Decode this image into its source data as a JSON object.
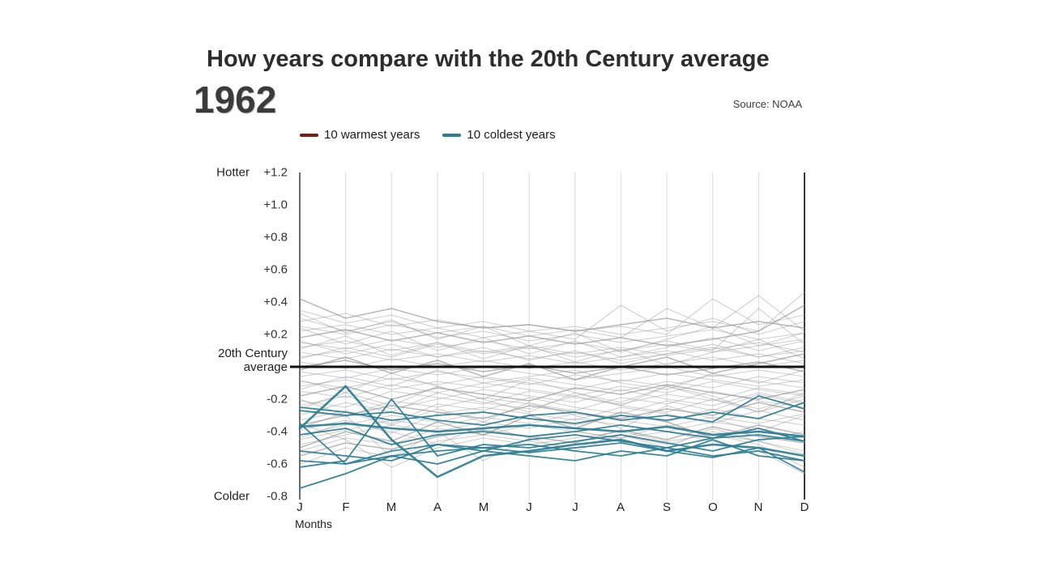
{
  "header": {
    "title": "How years compare with the 20th Century average",
    "year": "1962",
    "source": "Source: NOAA"
  },
  "legend": {
    "warmest": {
      "label": "10 warmest years",
      "color": "#7b1d12"
    },
    "coldest": {
      "label": "10 coldest years",
      "color": "#2b7d92"
    }
  },
  "axis": {
    "hotter": "Hotter",
    "colder": "Colder",
    "zero_line1": "20th Century",
    "zero_line2": "average",
    "y_ticks": [
      "+1.2",
      "+1.0",
      "+0.8",
      "+0.6",
      "+0.4",
      "+0.2",
      "-0.2",
      "-0.4",
      "-0.6",
      "-0.8"
    ],
    "months": [
      "J",
      "F",
      "M",
      "A",
      "M",
      "J",
      "J",
      "A",
      "S",
      "O",
      "N",
      "D"
    ],
    "months_caption": "Months"
  },
  "chart_data": {
    "type": "line",
    "title": "How years compare with the 20th Century average",
    "current_year": 1962,
    "x_categories": [
      "J",
      "F",
      "M",
      "A",
      "M",
      "J",
      "J",
      "A",
      "S",
      "O",
      "N",
      "D"
    ],
    "xlabel": "Months",
    "ylim": [
      -0.8,
      1.2
    ],
    "y_tick_step": 0.2,
    "baseline": {
      "label": "20th Century average",
      "value": 0,
      "color": "#111111"
    },
    "grid": "vertical-month-lines",
    "legend_position": "top",
    "colors": {
      "coldest": "#2b7d92",
      "warmest": "#7b1d12",
      "other": "#a0a0a0"
    },
    "warmest_series": [],
    "coldest_series": [
      [
        -0.58,
        -0.6,
        -0.55,
        -0.52,
        -0.5,
        -0.48,
        -0.52,
        -0.55,
        -0.5,
        -0.55,
        -0.52,
        -0.58
      ],
      [
        -0.75,
        -0.66,
        -0.55,
        -0.6,
        -0.52,
        -0.45,
        -0.42,
        -0.46,
        -0.5,
        -0.44,
        -0.42,
        -0.46
      ],
      [
        -0.62,
        -0.58,
        -0.2,
        -0.55,
        -0.48,
        -0.5,
        -0.46,
        -0.42,
        -0.47,
        -0.52,
        -0.45,
        -0.43
      ],
      [
        -0.38,
        -0.12,
        -0.45,
        -0.68,
        -0.55,
        -0.52,
        -0.48,
        -0.45,
        -0.52,
        -0.48,
        -0.5,
        -0.55
      ],
      [
        -0.37,
        -0.35,
        -0.38,
        -0.4,
        -0.38,
        -0.36,
        -0.38,
        -0.4,
        -0.37,
        -0.42,
        -0.4,
        -0.43
      ],
      [
        -0.42,
        -0.38,
        -0.48,
        -0.42,
        -0.4,
        -0.43,
        -0.4,
        -0.36,
        -0.4,
        -0.44,
        -0.38,
        -0.46
      ],
      [
        -0.27,
        -0.3,
        -0.28,
        -0.33,
        -0.36,
        -0.3,
        -0.28,
        -0.33,
        -0.3,
        -0.34,
        -0.18,
        -0.26
      ],
      [
        -0.25,
        -0.28,
        -0.33,
        -0.3,
        -0.28,
        -0.32,
        -0.35,
        -0.3,
        -0.33,
        -0.28,
        -0.32,
        -0.22
      ],
      [
        -0.52,
        -0.55,
        -0.58,
        -0.48,
        -0.5,
        -0.53,
        -0.5,
        -0.47,
        -0.52,
        -0.56,
        -0.5,
        -0.65
      ],
      [
        -0.35,
        -0.6,
        -0.52,
        -0.48,
        -0.52,
        -0.55,
        -0.58,
        -0.52,
        -0.55,
        -0.45,
        -0.55,
        -0.58
      ]
    ],
    "other_series": [
      [
        0.42,
        0.3,
        0.36,
        0.28,
        0.24,
        0.26,
        0.22,
        0.26,
        0.3,
        0.24,
        0.28,
        0.24
      ],
      [
        0.35,
        0.27,
        0.32,
        0.24,
        0.28,
        0.22,
        0.25,
        0.2,
        0.24,
        0.28,
        0.22,
        0.46
      ],
      [
        0.28,
        0.33,
        0.25,
        0.29,
        0.24,
        0.26,
        0.22,
        0.25,
        0.2,
        0.42,
        0.26,
        0.32
      ],
      [
        0.25,
        0.2,
        0.26,
        0.21,
        0.25,
        0.19,
        0.23,
        0.18,
        0.36,
        0.24,
        0.44,
        0.22
      ],
      [
        0.22,
        0.26,
        0.2,
        0.24,
        0.18,
        0.22,
        0.17,
        0.38,
        0.22,
        0.3,
        0.2,
        0.28
      ],
      [
        0.3,
        0.22,
        0.28,
        0.18,
        0.22,
        0.16,
        0.2,
        0.15,
        0.19,
        0.23,
        0.17,
        0.21
      ],
      [
        0.18,
        0.23,
        0.16,
        0.21,
        0.15,
        0.19,
        0.14,
        0.18,
        0.13,
        0.17,
        0.22,
        0.38
      ],
      [
        0.15,
        0.11,
        0.17,
        0.12,
        0.16,
        0.11,
        0.15,
        0.1,
        0.14,
        0.09,
        0.13,
        0.17
      ],
      [
        0.12,
        0.16,
        0.1,
        0.15,
        0.09,
        0.13,
        0.08,
        0.12,
        0.07,
        0.11,
        0.15,
        0.09
      ],
      [
        0.09,
        0.05,
        0.11,
        0.06,
        0.1,
        0.05,
        0.09,
        0.04,
        0.08,
        0.12,
        0.06,
        0.1
      ],
      [
        0.06,
        0.1,
        0.04,
        0.08,
        0.03,
        0.07,
        0.02,
        0.06,
        0.1,
        0.04,
        0.08,
        0.02
      ],
      [
        0.03,
        -0.01,
        0.05,
        0.0,
        0.04,
        -0.01,
        0.03,
        -0.02,
        0.02,
        0.06,
        0.0,
        0.04
      ],
      [
        0.0,
        0.04,
        -0.02,
        0.02,
        -0.03,
        0.01,
        -0.04,
        0.0,
        -0.05,
        -0.01,
        0.03,
        -0.03
      ],
      [
        -0.03,
        -0.07,
        -0.01,
        -0.05,
        0.0,
        -0.04,
        -0.08,
        -0.04,
        0.0,
        -0.06,
        -0.02,
        -0.06
      ],
      [
        -0.06,
        -0.02,
        -0.08,
        -0.03,
        -0.07,
        -0.11,
        -0.05,
        -0.09,
        -0.04,
        -0.08,
        -0.12,
        -0.08
      ],
      [
        -0.09,
        -0.13,
        -0.07,
        -0.11,
        -0.06,
        -0.1,
        -0.14,
        -0.08,
        -0.12,
        -0.05,
        -0.09,
        -0.13
      ],
      [
        -0.12,
        -0.08,
        -0.14,
        -0.09,
        -0.13,
        -0.07,
        -0.11,
        -0.15,
        -0.09,
        -0.13,
        -0.06,
        -0.1
      ],
      [
        -0.15,
        -0.19,
        -0.11,
        -0.16,
        -0.1,
        -0.14,
        -0.18,
        -0.12,
        -0.16,
        -0.09,
        -0.14,
        -0.18
      ],
      [
        -0.18,
        -0.12,
        -0.2,
        -0.13,
        -0.17,
        -0.21,
        -0.13,
        -0.17,
        -0.11,
        -0.16,
        -0.2,
        -0.14
      ],
      [
        -0.21,
        -0.25,
        -0.15,
        -0.19,
        -0.23,
        -0.15,
        -0.19,
        -0.23,
        -0.17,
        -0.21,
        -0.13,
        -0.17
      ],
      [
        -0.24,
        -0.18,
        -0.26,
        -0.2,
        -0.14,
        -0.18,
        -0.22,
        -0.14,
        -0.2,
        -0.24,
        -0.16,
        -0.22
      ],
      [
        -0.27,
        -0.31,
        -0.21,
        -0.25,
        -0.19,
        -0.23,
        -0.27,
        -0.19,
        -0.23,
        -0.15,
        -0.21,
        -0.25
      ],
      [
        -0.3,
        -0.22,
        -0.28,
        -0.16,
        -0.22,
        -0.26,
        -0.18,
        -0.24,
        -0.28,
        -0.2,
        -0.26,
        -0.18
      ],
      [
        -0.33,
        -0.27,
        -0.35,
        -0.23,
        -0.27,
        -0.19,
        -0.25,
        -0.29,
        -0.21,
        -0.27,
        -0.17,
        -0.23
      ],
      [
        -0.36,
        -0.3,
        -0.24,
        -0.28,
        -0.32,
        -0.24,
        -0.28,
        -0.32,
        -0.26,
        -0.3,
        -0.22,
        -0.28
      ],
      [
        -0.39,
        -0.33,
        -0.41,
        -0.29,
        -0.25,
        -0.29,
        -0.33,
        -0.25,
        -0.29,
        -0.35,
        -0.27,
        -0.33
      ],
      [
        -0.42,
        -0.36,
        -0.3,
        -0.34,
        -0.28,
        -0.32,
        -0.36,
        -0.3,
        -0.34,
        -0.26,
        -0.32,
        -0.36
      ],
      [
        -0.45,
        -0.39,
        -0.33,
        -0.37,
        -0.31,
        -0.35,
        -0.29,
        -0.33,
        -0.37,
        -0.31,
        -0.35,
        -0.29
      ],
      [
        -0.48,
        -0.42,
        -0.36,
        -0.4,
        -0.34,
        -0.38,
        -0.32,
        -0.36,
        -0.4,
        -0.34,
        -0.38,
        -0.44
      ],
      [
        -0.52,
        -0.44,
        -0.48,
        -0.38,
        -0.42,
        -0.36,
        -0.4,
        -0.44,
        -0.36,
        -0.42,
        -0.46,
        -0.4
      ],
      [
        -0.55,
        -0.47,
        -0.51,
        -0.43,
        -0.39,
        -0.43,
        -0.47,
        -0.39,
        -0.45,
        -0.37,
        -0.43,
        -0.47
      ],
      [
        -0.6,
        -0.5,
        -0.56,
        -0.46,
        -0.42,
        -0.46,
        -0.5,
        -0.42,
        -0.48,
        -0.4,
        -0.46,
        -0.52
      ],
      [
        -0.35,
        -0.45,
        -0.62,
        -0.5,
        -0.44,
        -0.48,
        -0.44,
        -0.4,
        -0.46,
        -0.42,
        -0.48,
        -0.62
      ],
      [
        -0.2,
        -0.3,
        -0.56,
        -0.4,
        -0.58,
        -0.44,
        -0.4,
        -0.44,
        -0.4,
        -0.46,
        -0.52,
        -0.66
      ],
      [
        0.05,
        0.12,
        0.06,
        0.14,
        0.08,
        0.12,
        0.06,
        0.1,
        0.16,
        0.1,
        0.36,
        0.14
      ],
      [
        0.16,
        0.08,
        0.14,
        0.06,
        0.12,
        0.04,
        0.1,
        0.02,
        0.08,
        0.14,
        0.06,
        0.12
      ],
      [
        -0.02,
        0.06,
        -0.04,
        0.04,
        -0.06,
        0.02,
        -0.08,
        0.0,
        0.06,
        -0.04,
        0.02,
        0.08
      ],
      [
        -0.14,
        -0.06,
        -0.12,
        -0.02,
        -0.1,
        -0.06,
        -0.02,
        -0.1,
        -0.14,
        -0.04,
        -0.1,
        -0.02
      ],
      [
        -0.26,
        -0.16,
        -0.24,
        -0.12,
        -0.2,
        -0.28,
        -0.16,
        -0.22,
        -0.12,
        -0.18,
        -0.28,
        -0.2
      ],
      [
        -0.38,
        -0.28,
        -0.36,
        -0.26,
        -0.34,
        -0.22,
        -0.3,
        -0.38,
        -0.24,
        -0.32,
        -0.4,
        -0.3
      ],
      [
        0.24,
        0.14,
        0.22,
        0.1,
        0.18,
        0.08,
        0.16,
        0.06,
        0.12,
        0.18,
        0.1,
        0.16
      ],
      [
        0.11,
        0.19,
        0.07,
        0.15,
        0.05,
        0.13,
        0.03,
        0.11,
        0.01,
        0.09,
        0.17,
        0.05
      ],
      [
        -0.5,
        -0.4,
        -0.46,
        -0.34,
        -0.42,
        -0.3,
        -0.38,
        -0.28,
        -0.34,
        -0.44,
        -0.36,
        -0.42
      ],
      [
        -0.08,
        -0.16,
        -0.04,
        -0.12,
        -0.2,
        -0.08,
        -0.16,
        -0.24,
        -0.12,
        -0.2,
        -0.28,
        -0.16
      ],
      [
        0.33,
        0.21,
        0.29,
        0.17,
        0.25,
        0.13,
        0.21,
        0.09,
        0.17,
        0.25,
        0.13,
        0.21
      ],
      [
        -0.44,
        -0.34,
        -0.4,
        -0.48,
        -0.36,
        -0.44,
        -0.52,
        -0.42,
        -0.5,
        -0.38,
        -0.46,
        -0.54
      ]
    ]
  }
}
